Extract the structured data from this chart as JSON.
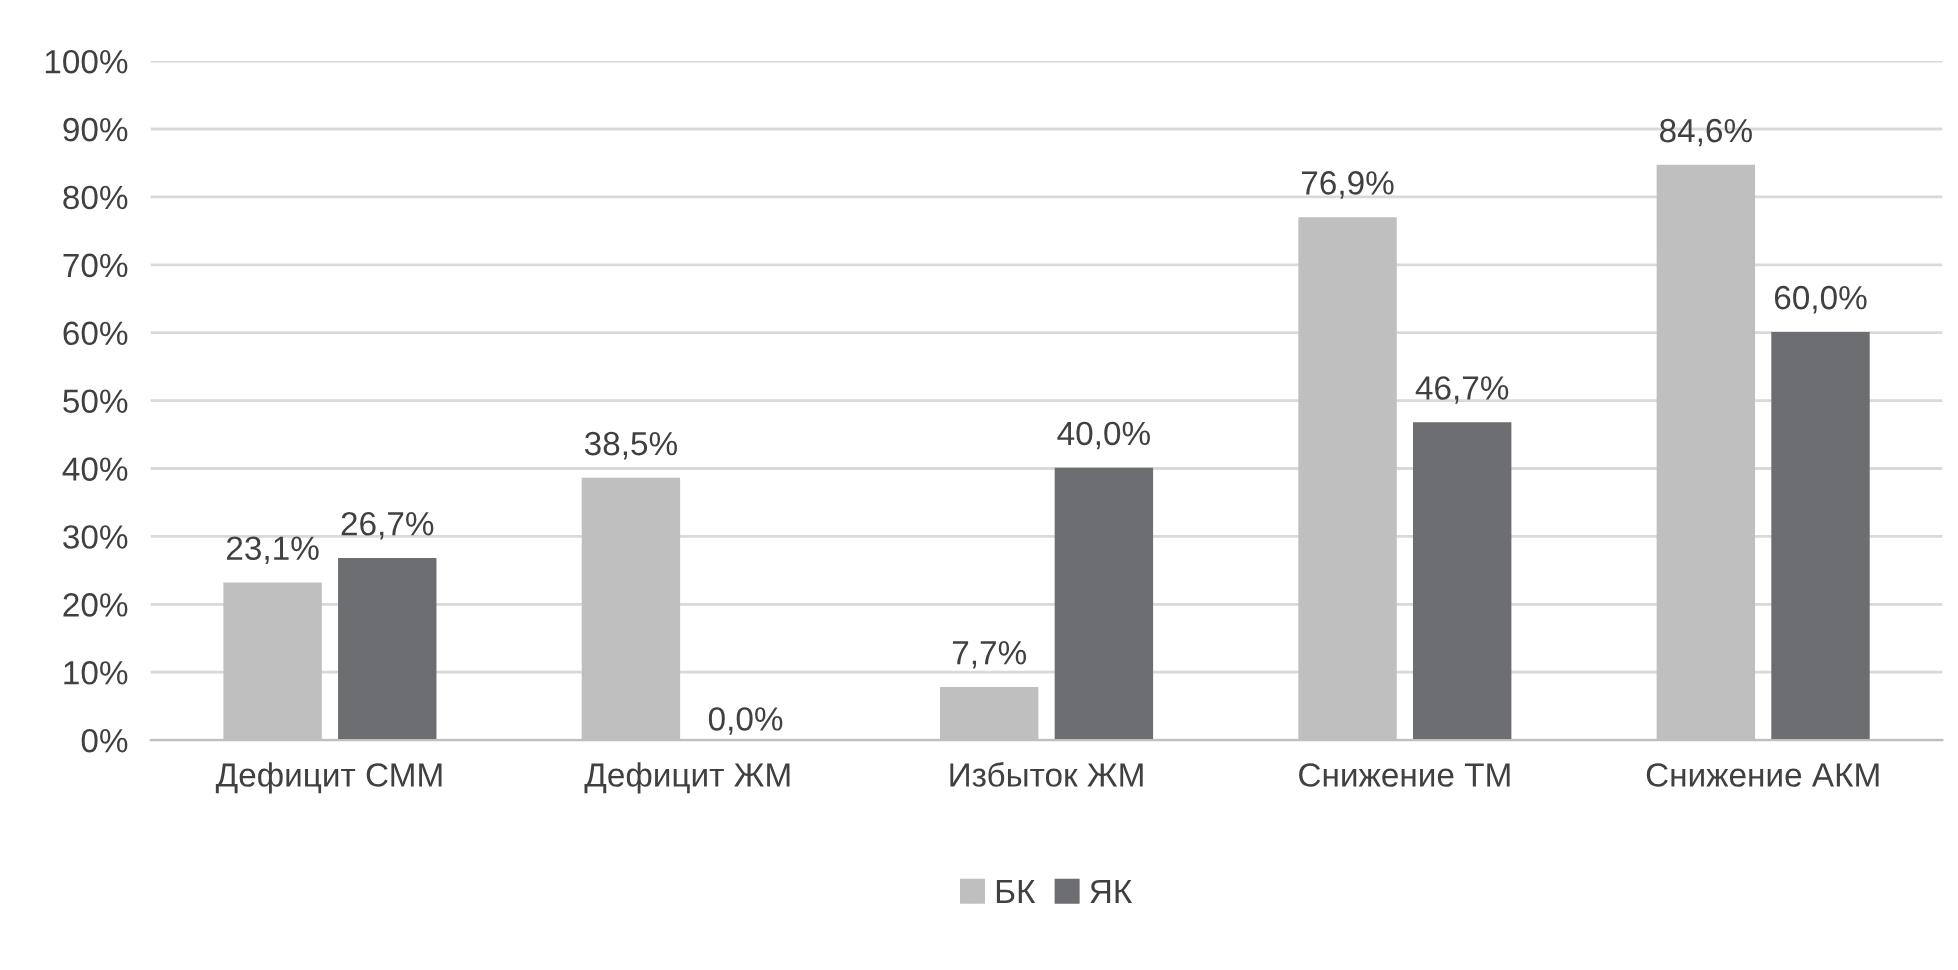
{
  "chart_data": {
    "type": "bar",
    "categories": [
      "Дефицит СММ",
      "Дефицит ЖМ",
      "Избыток ЖМ",
      "Снижение ТМ",
      "Снижение АКМ"
    ],
    "series": [
      {
        "name": "БК",
        "color": "#bfbfbf",
        "values": [
          23.1,
          38.5,
          7.7,
          76.9,
          84.6
        ],
        "value_labels": [
          "23,1%",
          "38,5%",
          "7,7%",
          "76,9%",
          "84,6%"
        ]
      },
      {
        "name": "ЯК",
        "color": "#6d6e71",
        "values": [
          26.7,
          0.0,
          40.0,
          46.7,
          60.0
        ],
        "value_labels": [
          "26,7%",
          "0,0%",
          "40,0%",
          "46,7%",
          "60,0%"
        ]
      }
    ],
    "ylim": [
      0,
      100
    ],
    "yticks": [
      {
        "value": 0,
        "label": "0%"
      },
      {
        "value": 10,
        "label": "10%"
      },
      {
        "value": 20,
        "label": "20%"
      },
      {
        "value": 30,
        "label": "30%"
      },
      {
        "value": 40,
        "label": "40%"
      },
      {
        "value": 50,
        "label": "50%"
      },
      {
        "value": 60,
        "label": "60%"
      },
      {
        "value": 70,
        "label": "70%"
      },
      {
        "value": 80,
        "label": "80%"
      },
      {
        "value": 90,
        "label": "90%"
      },
      {
        "value": 100,
        "label": "100%"
      }
    ],
    "grid": "y",
    "legend": "bottom"
  }
}
